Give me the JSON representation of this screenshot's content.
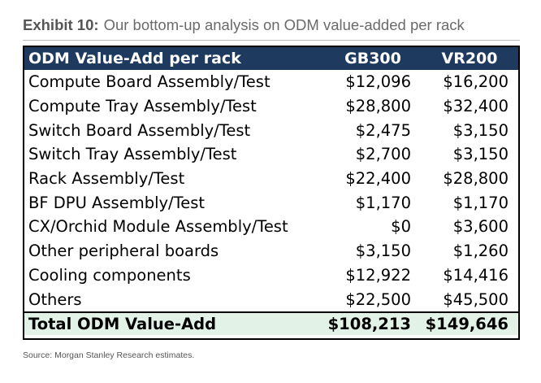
{
  "exhibit": {
    "label": "Exhibit 10:",
    "title": "Our bottom-up analysis on ODM value-added per rack"
  },
  "table": {
    "header": {
      "name": "ODM Value-Add per rack",
      "col1": "GB300",
      "col2": "VR200"
    },
    "rows": [
      {
        "name": "Compute Board Assembly/Test",
        "col1": "$12,096",
        "col2": "$16,200"
      },
      {
        "name": "Compute Tray Assembly/Test",
        "col1": "$28,800",
        "col2": "$32,400"
      },
      {
        "name": "Switch Board Assembly/Test",
        "col1": "$2,475",
        "col2": "$3,150"
      },
      {
        "name": "Switch Tray Assembly/Test",
        "col1": "$2,700",
        "col2": "$3,150"
      },
      {
        "name": "Rack Assembly/Test",
        "col1": "$22,400",
        "col2": "$28,800"
      },
      {
        "name": "BF DPU Assembly/Test",
        "col1": "$1,170",
        "col2": "$1,170"
      },
      {
        "name": "CX/Orchid Module Assembly/Test",
        "col1": "$0",
        "col2": "$3,600"
      },
      {
        "name": "Other peripheral boards",
        "col1": "$3,150",
        "col2": "$1,260"
      },
      {
        "name": "Cooling components",
        "col1": "$12,922",
        "col2": "$14,416"
      },
      {
        "name": "Others",
        "col1": "$22,500",
        "col2": "$45,500"
      }
    ],
    "total": {
      "name": "Total ODM Value-Add",
      "col1": "$108,213",
      "col2": "$149,646"
    }
  },
  "source": "Source: Morgan Stanley Research estimates.",
  "colors": {
    "header_bg": "#1f3a5f",
    "total_bg": "#e3f2e6"
  }
}
